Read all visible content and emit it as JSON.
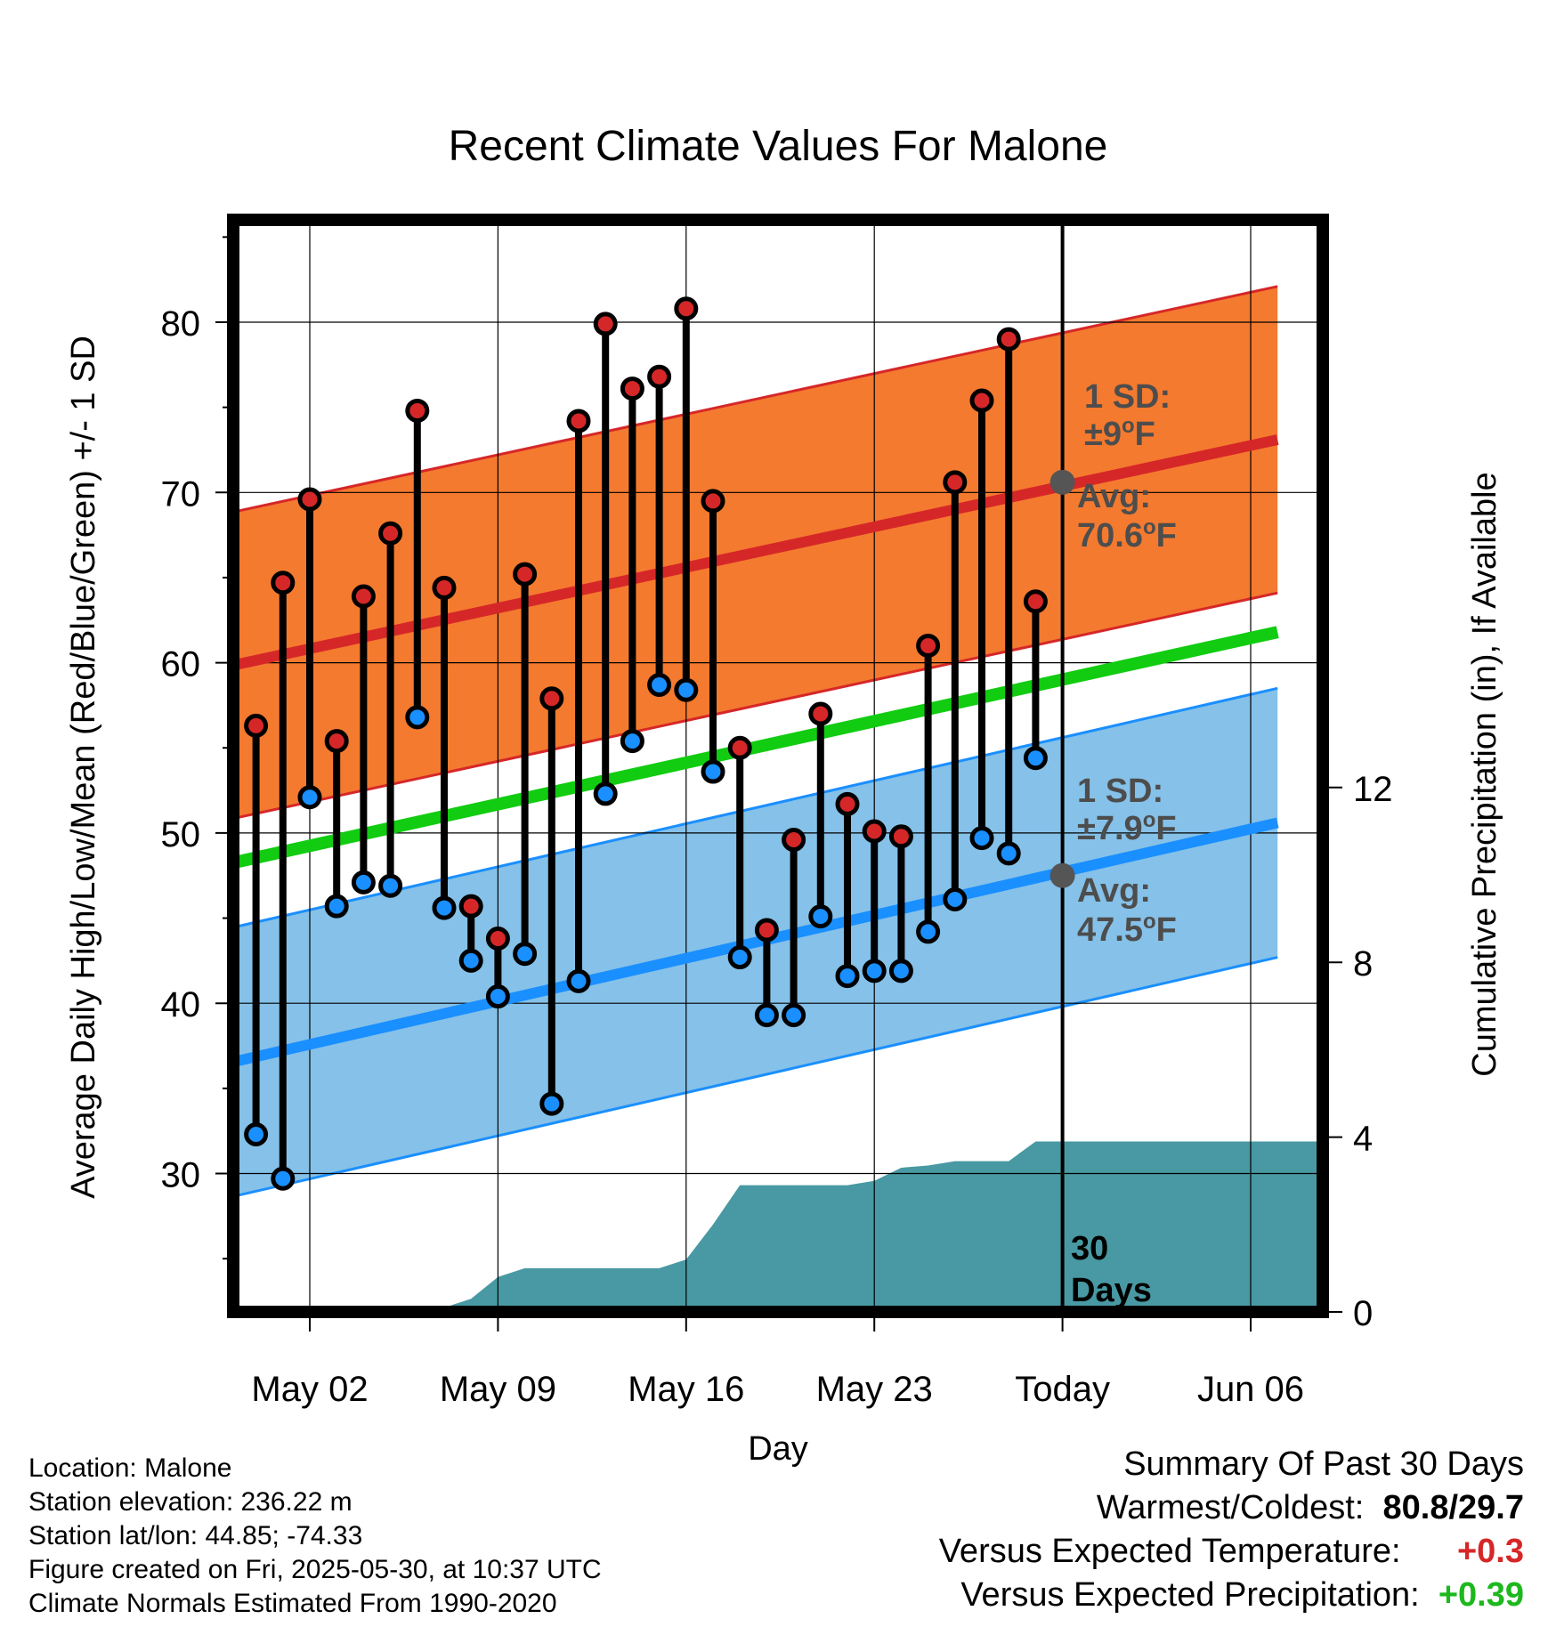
{
  "chart_data": {
    "type": "line",
    "title": "Recent Climate Values For Malone",
    "xlabel": "Day",
    "ylabel": "Average Daily High/Low/Mean (Red/Blue/Green) +/- 1 SD",
    "y2label": "Cumulative Precipitation (in), If Available",
    "ylim": [
      22,
      85
    ],
    "y2lim": [
      0,
      20.25
    ],
    "x_ticks": [
      "May 02",
      "May 09",
      "May 16",
      "May 23",
      "Today",
      "Jun 06"
    ],
    "y_ticks": [
      30,
      40,
      50,
      60,
      70,
      80
    ],
    "y2_ticks": [
      0,
      4,
      8,
      12
    ],
    "grid": true,
    "days": [
      "Apr 30",
      "May 01",
      "May 02",
      "May 03",
      "May 04",
      "May 05",
      "May 06",
      "May 07",
      "May 08",
      "May 09",
      "May 10",
      "May 11",
      "May 12",
      "May 13",
      "May 14",
      "May 15",
      "May 16",
      "May 17",
      "May 18",
      "May 19",
      "May 20",
      "May 21",
      "May 22",
      "May 23",
      "May 24",
      "May 25",
      "May 26",
      "May 27",
      "May 28",
      "May 29"
    ],
    "observed_high": [
      56.3,
      64.7,
      69.6,
      55.4,
      63.9,
      67.6,
      74.8,
      64.4,
      45.7,
      43.8,
      65.2,
      57.9,
      74.2,
      79.9,
      76.1,
      76.8,
      80.8,
      69.5,
      55.0,
      44.3,
      49.6,
      57.0,
      51.7,
      50.1,
      49.8,
      61.0,
      70.6,
      75.4,
      79.0,
      63.6
    ],
    "observed_low": [
      32.3,
      29.7,
      52.1,
      45.7,
      47.1,
      46.9,
      56.8,
      45.6,
      42.5,
      40.4,
      42.9,
      34.1,
      41.3,
      52.3,
      55.4,
      58.7,
      58.4,
      53.6,
      42.7,
      39.3,
      39.3,
      45.1,
      41.6,
      41.9,
      41.9,
      44.2,
      46.1,
      49.7,
      48.8,
      54.4
    ],
    "normal_high_range": [
      "Apr 29",
      "Jun 07"
    ],
    "normal_high_ends": [
      59.8,
      73.1
    ],
    "normal_high_sd": 9,
    "normal_low_ends": [
      36.5,
      50.6
    ],
    "normal_low_sd": 7.9,
    "normal_mean_ends": [
      48.2,
      61.8
    ],
    "precip_cumulative": [
      0,
      0,
      0,
      0,
      0,
      0.05,
      0.1,
      0.1,
      0.1,
      0.3,
      0.8,
      1.0,
      1.0,
      1.0,
      1.0,
      1.0,
      1.0,
      1.2,
      2.0,
      2.9,
      2.9,
      2.9,
      2.9,
      2.9,
      3.0,
      3.3,
      3.35,
      3.45,
      3.45,
      3.45,
      3.9
    ],
    "precip_today": 3.9,
    "annotations": {
      "high_sd": [
        "1 SD:",
        "±9",
        "o",
        "F"
      ],
      "high_avg": [
        "Avg:",
        "70.6",
        "o",
        "F"
      ],
      "low_sd": [
        "1 SD:",
        "±7.9",
        "o",
        "F"
      ],
      "low_avg": [
        "Avg:",
        "47.5",
        "o",
        "F"
      ],
      "period": [
        "30",
        "Days"
      ]
    },
    "colors": {
      "high_band": "#f47a2f",
      "high_line": "#d62728",
      "low_band": "#85c1e8",
      "low_line": "#1a8fff",
      "mean_line": "#11cc11",
      "precip": "#4899a3",
      "marker_high": "#d62728",
      "marker_low": "#1a8fff",
      "avg_marker": "#555555"
    }
  },
  "info": {
    "location": "Location: Malone",
    "elevation": "Station elevation: 236.22 m",
    "latlon": "Station lat/lon: 44.85; -74.33",
    "created": "Figure created on Fri, 2025-05-30, at 10:37 UTC",
    "normals": "Climate Normals Estimated From 1990-2020"
  },
  "summary": {
    "heading": "Summary Of Past 30 Days",
    "warm_cold_label": "Warmest/Coldest:",
    "warmest": "80.8",
    "separator": "/",
    "coldest": "29.7",
    "temp_label": "Versus Expected Temperature:",
    "temp_value": "+0.3",
    "precip_label": "Versus Expected Precipitation:",
    "precip_value": "+0.39"
  }
}
